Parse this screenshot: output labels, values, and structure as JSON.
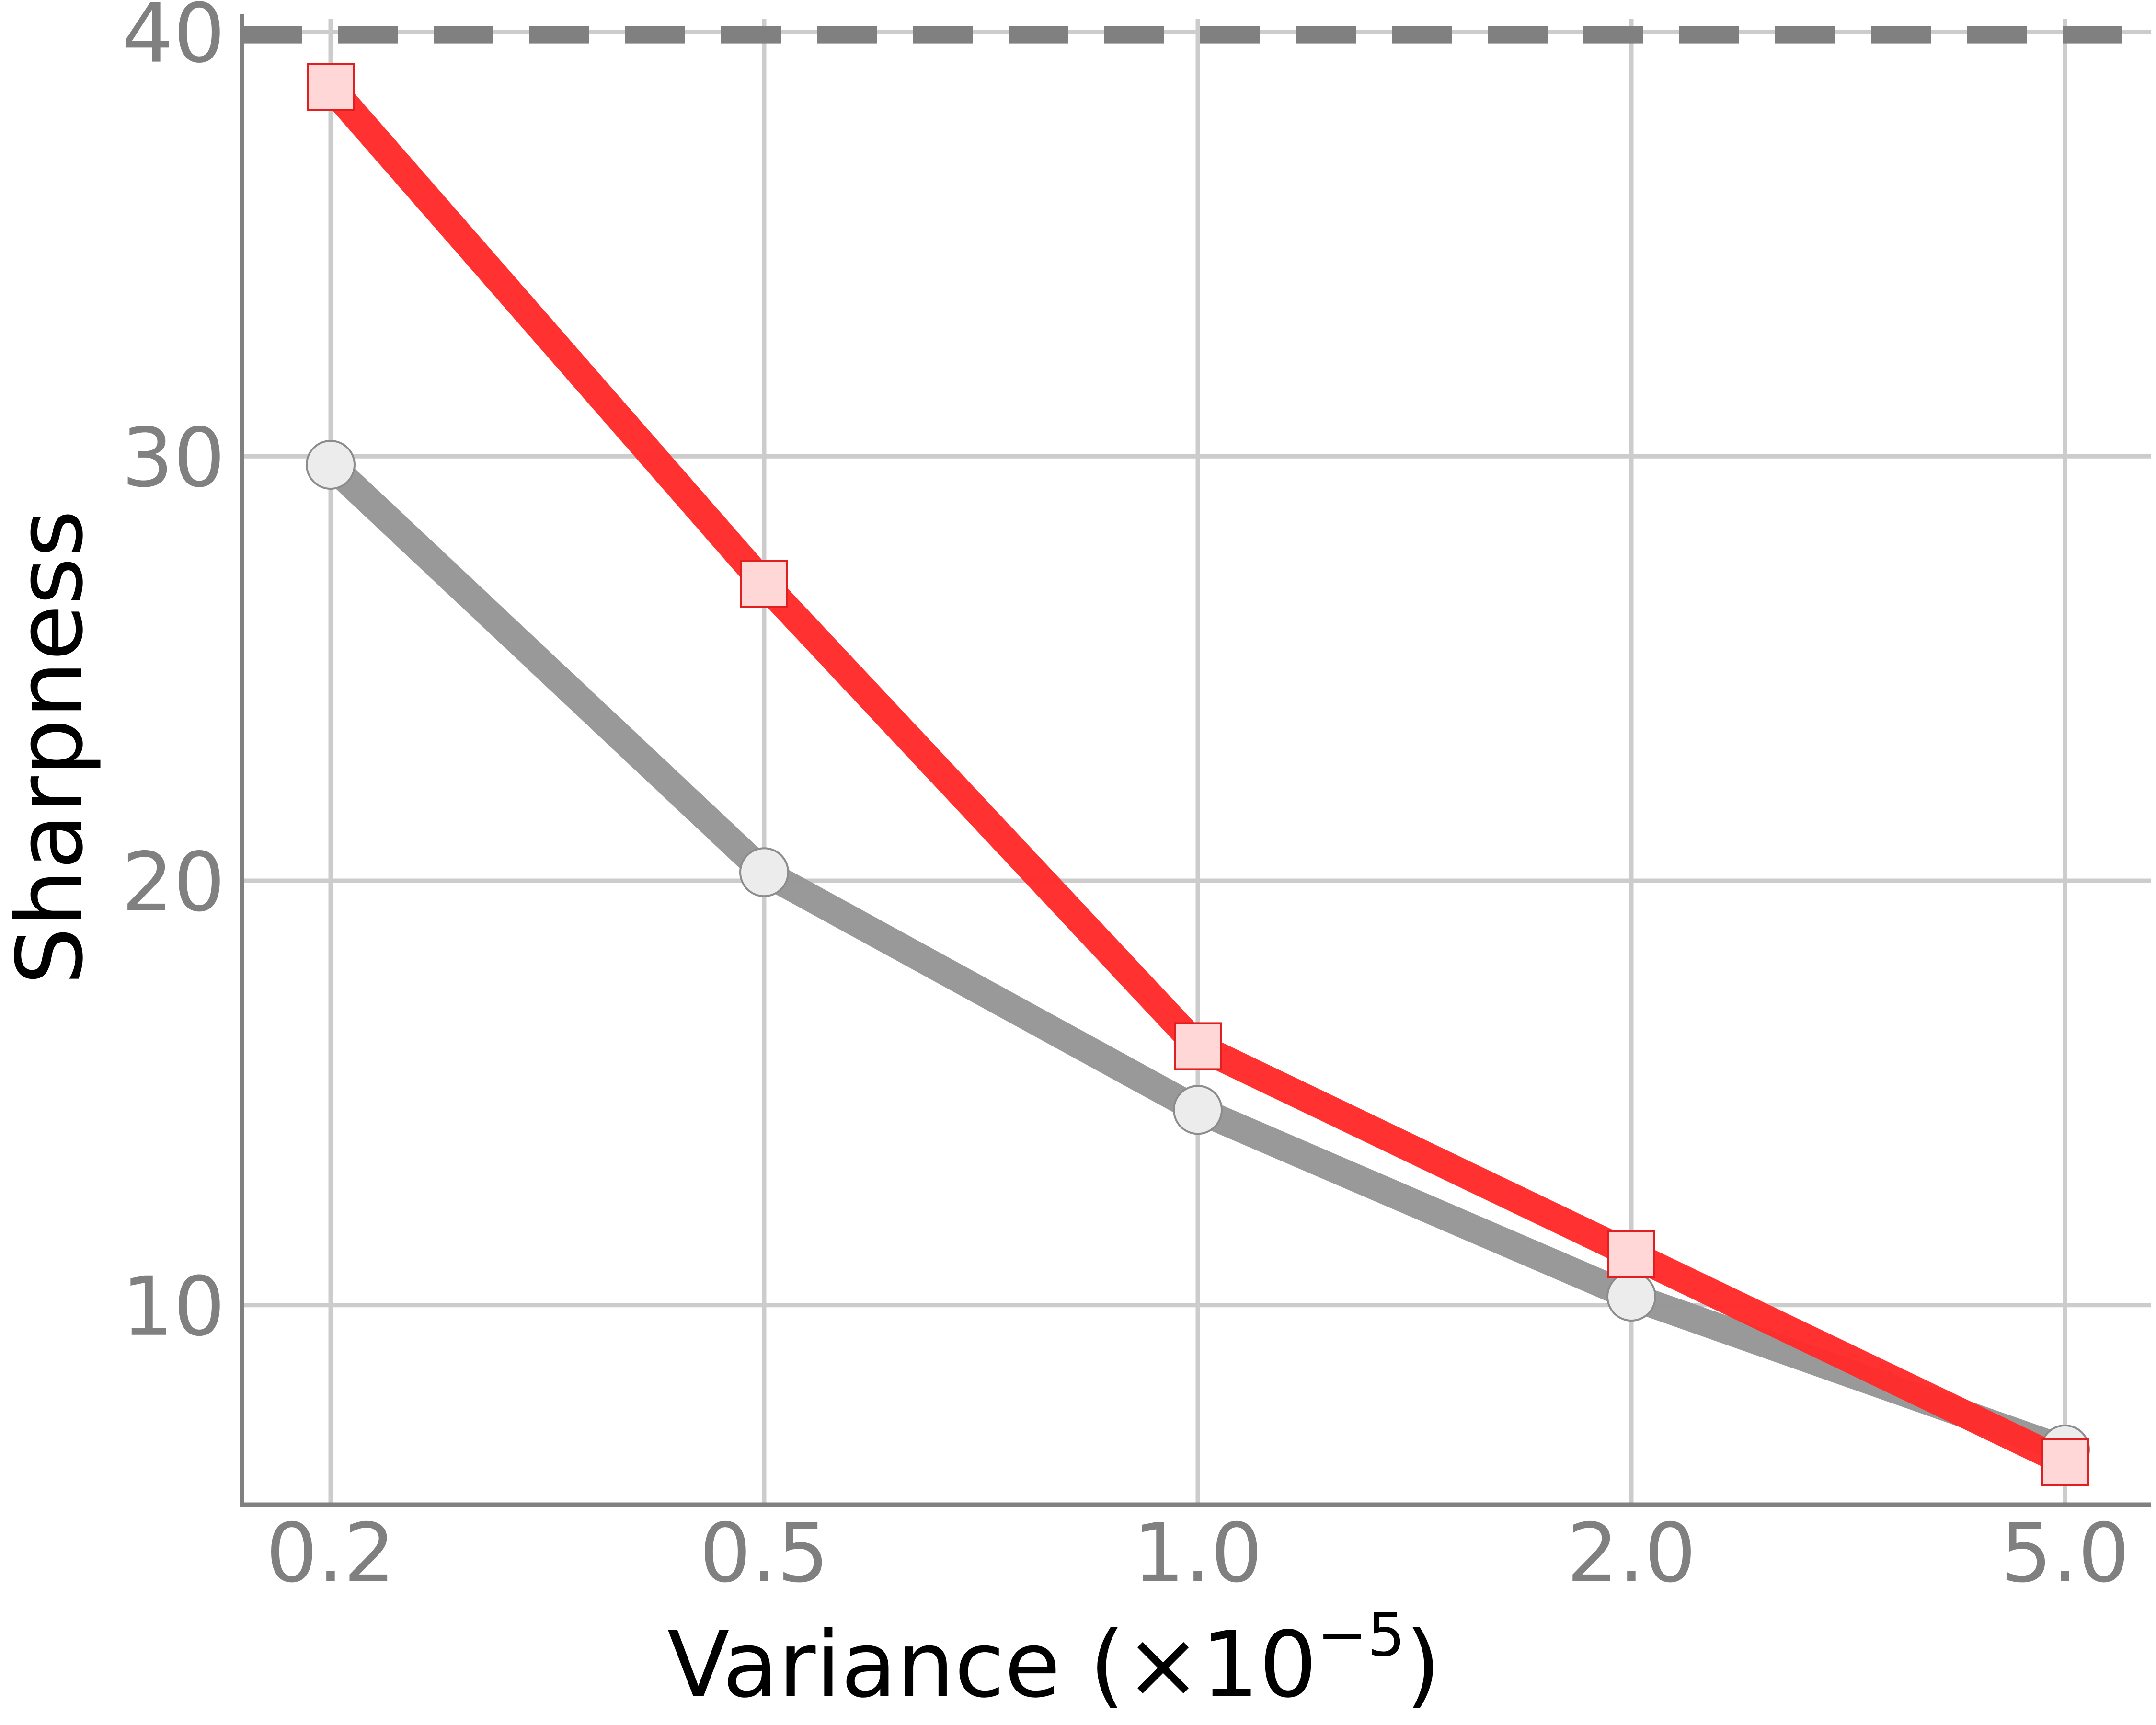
{
  "chart_data": {
    "type": "line",
    "xlabel": "Variance (×10",
    "xlabel_exponent": "−5",
    "xlabel_close": ")",
    "ylabel": "Sharpness",
    "x_tick_labels": [
      "0.2",
      "0.5",
      "1.0",
      "2.0",
      "5.0"
    ],
    "y_ticks": [
      10,
      20,
      30,
      40
    ],
    "y_tick_labels": [
      "10",
      "20",
      "30",
      "40"
    ],
    "ylim": [
      5.3,
      40.3
    ],
    "grid": true,
    "reference_line": {
      "y": 40,
      "style": "dashed",
      "color": "#808080"
    },
    "series": [
      {
        "marker": "circle",
        "color": "#969696",
        "marker_fill": "#ececec",
        "values": [
          29.8,
          20.2,
          14.6,
          10.2,
          6.6
        ]
      },
      {
        "marker": "square",
        "color": "#ff2a2a",
        "marker_fill": "#ffd7d7",
        "values": [
          38.7,
          27.0,
          16.1,
          11.2,
          6.3
        ]
      }
    ]
  }
}
